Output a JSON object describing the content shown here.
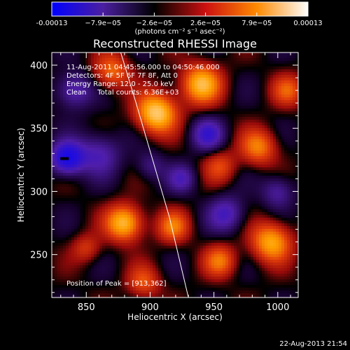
{
  "chart_data": {
    "type": "heatmap",
    "title": "Reconstructed RHESSI Image",
    "xlabel": "Heliocentric X (arcsec)",
    "ylabel": "Heliocentric Y (arcsec)",
    "xlim": [
      823,
      1016
    ],
    "ylim": [
      216,
      410
    ],
    "xticks": [
      850,
      900,
      950,
      1000
    ],
    "yticks": [
      250,
      300,
      350,
      400
    ],
    "colorbar": {
      "ticks": [
        "-0.00013",
        "−7.9e−05",
        "−2.6e−05",
        "2.6e−05",
        "7.9e−05",
        "0.00013"
      ],
      "unit_label": "(photons cm⁻² s⁻¹ asec⁻²)",
      "colors": [
        "#0000ff",
        "#4b1fa0",
        "#000000",
        "#cc1010",
        "#ff8a00",
        "#ffffff"
      ]
    },
    "annotations": {
      "time_range": "11-Aug-2011 04:45:56.000 to 04:50:46.000",
      "detectors": "Detectors: 4F 5F 6F 7F 8F, Att 0",
      "energy_range": "Energy Range: 12.0 - 25.0 keV",
      "clean": "Clean     Total counts: 6.36E+03",
      "peak": "Position of Peak = [913,362]"
    },
    "peak_position": [
      913,
      362
    ],
    "blobs": [
      {
        "x": 905,
        "y": 362,
        "amp": 1.0,
        "sigma": 11
      },
      {
        "x": 940,
        "y": 385,
        "amp": 0.85,
        "sigma": 11
      },
      {
        "x": 880,
        "y": 275,
        "amp": 0.9,
        "sigma": 10
      },
      {
        "x": 918,
        "y": 272,
        "amp": 0.55,
        "sigma": 9
      },
      {
        "x": 995,
        "y": 260,
        "amp": 0.8,
        "sigma": 11
      },
      {
        "x": 985,
        "y": 335,
        "amp": 0.6,
        "sigma": 10
      },
      {
        "x": 955,
        "y": 245,
        "amp": 0.55,
        "sigma": 9
      },
      {
        "x": 870,
        "y": 395,
        "amp": 0.55,
        "sigma": 10
      },
      {
        "x": 1008,
        "y": 380,
        "amp": 0.45,
        "sigma": 9
      },
      {
        "x": 895,
        "y": 228,
        "amp": 0.45,
        "sigma": 9
      },
      {
        "x": 955,
        "y": 320,
        "amp": 0.4,
        "sigma": 9
      },
      {
        "x": 850,
        "y": 255,
        "amp": 0.35,
        "sigma": 8
      },
      {
        "x": 835,
        "y": 326,
        "amp": -0.9,
        "sigma": 9
      },
      {
        "x": 860,
        "y": 330,
        "amp": -0.45,
        "sigma": 12
      },
      {
        "x": 945,
        "y": 345,
        "amp": -0.55,
        "sigma": 9
      },
      {
        "x": 960,
        "y": 282,
        "amp": -0.5,
        "sigma": 10
      },
      {
        "x": 840,
        "y": 380,
        "amp": -0.5,
        "sigma": 10
      },
      {
        "x": 925,
        "y": 310,
        "amp": -0.4,
        "sigma": 8
      },
      {
        "x": 1000,
        "y": 300,
        "amp": -0.4,
        "sigma": 9
      },
      {
        "x": 900,
        "y": 320,
        "amp": -0.3,
        "sigma": 8
      }
    ],
    "limb_curve": [
      [
        877,
        410
      ],
      [
        889,
        370
      ],
      [
        902,
        325
      ],
      [
        915,
        280
      ],
      [
        930,
        216
      ]
    ]
  },
  "footer": {
    "timestamp": "22-Aug-2013 21:54"
  }
}
